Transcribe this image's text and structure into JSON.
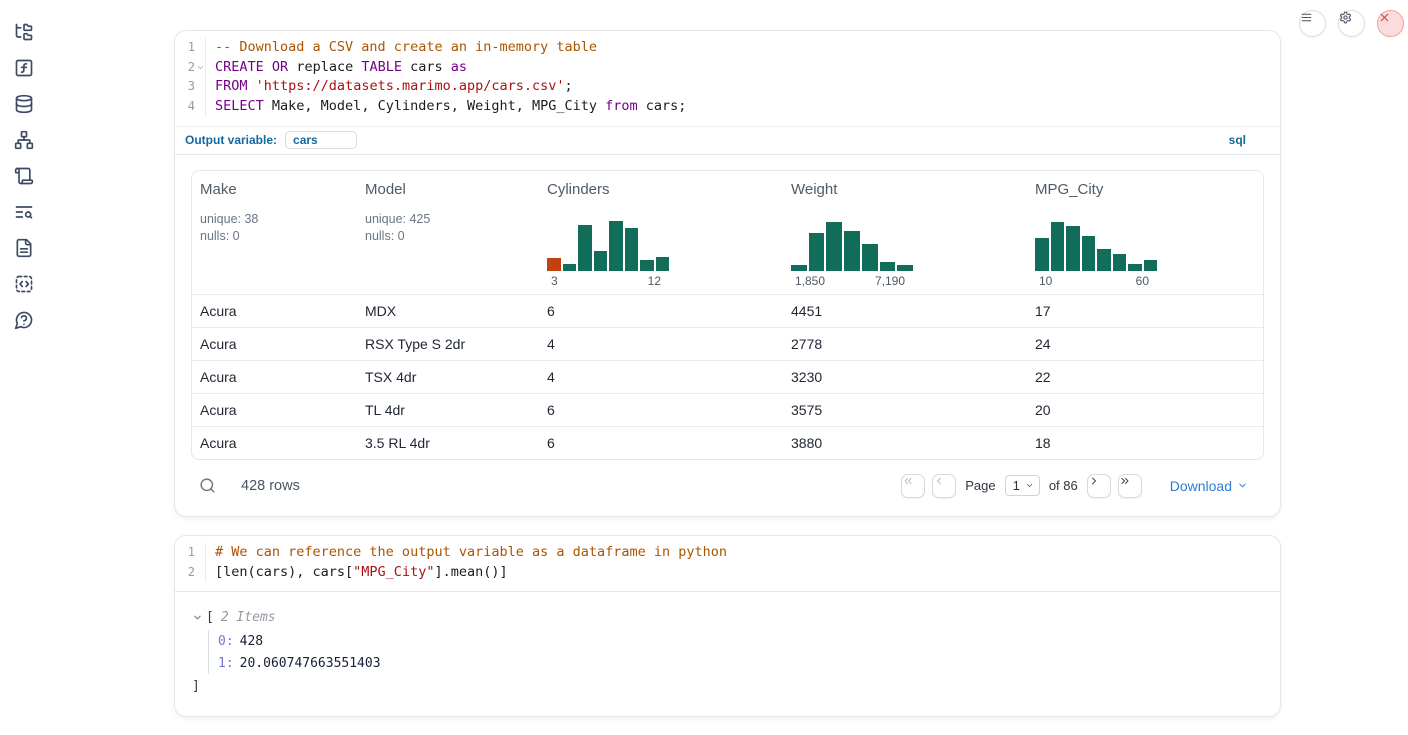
{
  "colors": {
    "histogram_green": "#116C5A",
    "histogram_orange": "#C1420E",
    "accent_blue": "#14699E",
    "link_blue": "#2E7CD6",
    "close_red": "#E23D3D"
  },
  "sidebar": {
    "items": [
      {
        "name": "sidebar-item-file-explorer",
        "icon": "file-tree-icon"
      },
      {
        "name": "sidebar-item-variables",
        "icon": "function-icon"
      },
      {
        "name": "sidebar-item-datasources",
        "icon": "database-icon"
      },
      {
        "name": "sidebar-item-dependency-graph",
        "icon": "dependency-graph-icon"
      },
      {
        "name": "sidebar-item-scratchpad",
        "icon": "scroll-icon"
      },
      {
        "name": "sidebar-item-logs",
        "icon": "text-search-icon"
      },
      {
        "name": "sidebar-item-documentation",
        "icon": "document-icon"
      },
      {
        "name": "sidebar-item-snippets",
        "icon": "snippets-icon"
      },
      {
        "name": "sidebar-item-help",
        "icon": "help-icon"
      }
    ]
  },
  "topbar": {
    "buttons": [
      {
        "name": "notebook-menu-button",
        "icon": "menu-icon"
      },
      {
        "name": "settings-button",
        "icon": "gear-icon"
      },
      {
        "name": "shutdown-button",
        "icon": "close-icon"
      }
    ]
  },
  "cells": [
    {
      "type": "sql",
      "code": {
        "lines": [
          {
            "num": "1",
            "fold": false,
            "segments": [
              {
                "text": "-- Download a CSV and create an in-memory table",
                "style": "com"
              }
            ]
          },
          {
            "num": "2",
            "fold": true,
            "segments": [
              {
                "text": "CREATE",
                "style": "kw"
              },
              {
                "text": " ",
                "style": "pl"
              },
              {
                "text": "OR",
                "style": "kw"
              },
              {
                "text": " replace ",
                "style": "pl"
              },
              {
                "text": "TABLE",
                "style": "kw"
              },
              {
                "text": " cars ",
                "style": "pl"
              },
              {
                "text": "as",
                "style": "kw"
              }
            ]
          },
          {
            "num": "3",
            "fold": false,
            "segments": [
              {
                "text": "FROM",
                "style": "kw"
              },
              {
                "text": " ",
                "style": "pl"
              },
              {
                "text": "'https://datasets.marimo.app/cars.csv'",
                "style": "str"
              },
              {
                "text": ";",
                "style": "pl"
              }
            ]
          },
          {
            "num": "4",
            "fold": false,
            "segments": [
              {
                "text": "SELECT",
                "style": "kw"
              },
              {
                "text": " Make, Model, Cylinders, Weight, MPG_City ",
                "style": "pl"
              },
              {
                "text": "from",
                "style": "kw"
              },
              {
                "text": " cars;",
                "style": "pl"
              }
            ]
          }
        ]
      },
      "output_variable": {
        "label": "Output variable:",
        "value": "cars",
        "language": "sql"
      },
      "table": {
        "columns": [
          {
            "name": "Make",
            "unique": "unique: 38",
            "nulls": "nulls: 0"
          },
          {
            "name": "Model",
            "unique": "unique: 425",
            "nulls": "nulls: 0"
          },
          {
            "name": "Cylinders",
            "histogram": {
              "min_label": "3",
              "max_label": "12",
              "bars": [
                {
                  "h": 0.25,
                  "highlight": true
                },
                {
                  "h": 0.13
                },
                {
                  "h": 0.88
                },
                {
                  "h": 0.38
                },
                {
                  "h": 0.96
                },
                {
                  "h": 0.83
                },
                {
                  "h": 0.21
                },
                {
                  "h": 0.27
                }
              ]
            }
          },
          {
            "name": "Weight",
            "histogram": {
              "min_label": "1,850",
              "max_label": "7,190",
              "bars": [
                {
                  "h": 0.12
                },
                {
                  "h": 0.73
                },
                {
                  "h": 0.95
                },
                {
                  "h": 0.76
                },
                {
                  "h": 0.52
                },
                {
                  "h": 0.17
                },
                {
                  "h": 0.12
                }
              ]
            }
          },
          {
            "name": "MPG_City",
            "histogram": {
              "min_label": "10",
              "max_label": "60",
              "bars": [
                {
                  "h": 0.63
                },
                {
                  "h": 0.95
                },
                {
                  "h": 0.87
                },
                {
                  "h": 0.68
                },
                {
                  "h": 0.43
                },
                {
                  "h": 0.32
                },
                {
                  "h": 0.13
                },
                {
                  "h": 0.22
                }
              ]
            }
          }
        ],
        "rows": [
          [
            "Acura",
            "MDX",
            "6",
            "4451",
            "17"
          ],
          [
            "Acura",
            "RSX Type S 2dr",
            "4",
            "2778",
            "24"
          ],
          [
            "Acura",
            "TSX 4dr",
            "4",
            "3230",
            "22"
          ],
          [
            "Acura",
            "TL 4dr",
            "6",
            "3575",
            "20"
          ],
          [
            "Acura",
            "3.5 RL 4dr",
            "6",
            "3880",
            "18"
          ]
        ],
        "footer": {
          "row_count": "428 rows",
          "page_label": "Page",
          "page_value": "1",
          "of_label": "of 86",
          "download_label": "Download"
        }
      }
    },
    {
      "type": "python",
      "code": {
        "lines": [
          {
            "num": "1",
            "fold": false,
            "segments": [
              {
                "text": "# We can reference the output variable as a dataframe in python",
                "style": "com"
              }
            ]
          },
          {
            "num": "2",
            "fold": false,
            "segments": [
              {
                "text": "[len(cars), cars[",
                "style": "pl"
              },
              {
                "text": "\"MPG_City\"",
                "style": "str"
              },
              {
                "text": "].mean()]",
                "style": "pl"
              }
            ]
          }
        ]
      },
      "output_tree": {
        "bracket_open": "[",
        "items_label": "2 Items",
        "entries": [
          {
            "key": "0:",
            "value": "428"
          },
          {
            "key": "1:",
            "value": "20.060747663551403"
          }
        ],
        "bracket_close": "]"
      }
    }
  ]
}
